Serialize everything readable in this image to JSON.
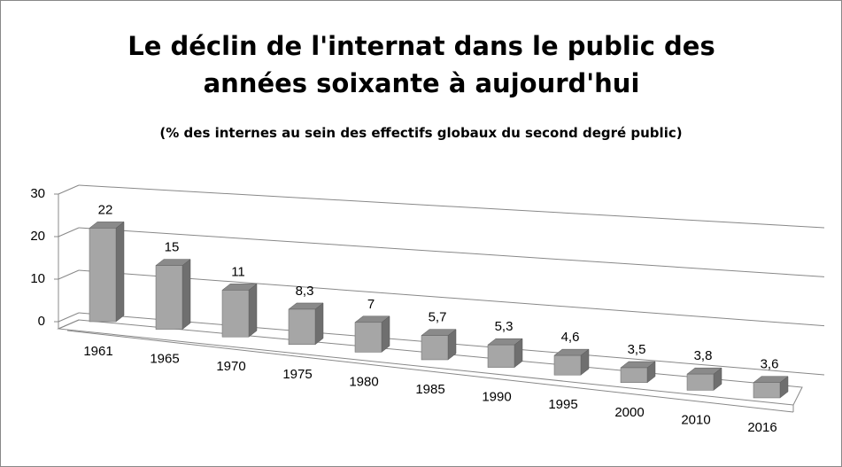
{
  "chart_data": {
    "type": "bar3d",
    "title": "Le déclin de l'internat dans le public des années soixante à aujourd'hui",
    "subtitle": "(% des internes au sein des effectifs globaux du second degré public)",
    "categories": [
      "1961",
      "1965",
      "1970",
      "1975",
      "1980",
      "1985",
      "1990",
      "1995",
      "2000",
      "2010",
      "2016"
    ],
    "values": [
      22,
      15,
      11,
      8.3,
      7,
      5.7,
      5.3,
      4.6,
      3.5,
      3.8,
      3.6
    ],
    "value_labels": [
      "22",
      "15",
      "11",
      "8,3",
      "7",
      "5,7",
      "5,3",
      "4,6",
      "3,5",
      "3,8",
      "3,6"
    ],
    "color": "#a6a6a6",
    "ylim": [
      0,
      30
    ],
    "yticks": [
      0,
      10,
      20,
      30
    ],
    "grid": true
  }
}
